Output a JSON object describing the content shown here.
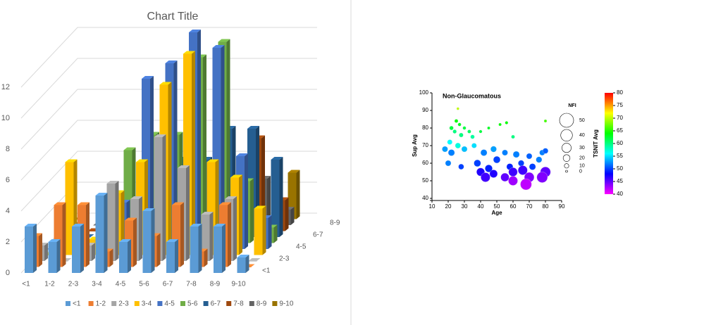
{
  "chart_data": [
    {
      "type": "bar3d",
      "title": "Chart Title",
      "categories": [
        "<1",
        "1-2",
        "2-3",
        "3-4",
        "4-5",
        "5-6",
        "6-7",
        "7-8",
        "8-9",
        "9-10"
      ],
      "series": [
        {
          "name": "<1",
          "color": "#5b9bd5",
          "values": [
            3,
            2,
            3,
            5,
            2,
            4,
            2,
            3,
            3,
            1
          ]
        },
        {
          "name": "1-2",
          "color": "#ed7d31",
          "values": [
            2,
            4,
            4,
            1,
            3,
            2,
            4,
            1,
            4,
            0
          ]
        },
        {
          "name": "2-3",
          "color": "#a5a5a5",
          "values": [
            1,
            0,
            1,
            5,
            4,
            8,
            6,
            3,
            4,
            0
          ]
        },
        {
          "name": "3-4",
          "color": "#ffc000",
          "values": [
            0,
            6,
            1,
            4,
            6,
            11,
            13,
            6,
            5,
            3
          ]
        },
        {
          "name": "4-5",
          "color": "#4472c4",
          "values": [
            0,
            0,
            0,
            3,
            11,
            12,
            14,
            13,
            6,
            2
          ]
        },
        {
          "name": "5-6",
          "color": "#70ad47",
          "values": [
            0,
            0,
            0,
            6,
            7,
            7,
            12,
            13,
            4,
            1
          ]
        },
        {
          "name": "6-7",
          "color": "#255e91",
          "values": [
            0,
            0,
            0,
            0,
            2,
            5,
            5,
            7,
            7,
            5
          ]
        },
        {
          "name": "7-8",
          "color": "#9e480e",
          "values": [
            0,
            0,
            0,
            1,
            1,
            1,
            2,
            3,
            6,
            2
          ]
        },
        {
          "name": "8-9",
          "color": "#636363",
          "values": [
            0,
            0,
            0,
            0,
            0,
            0,
            0,
            0,
            3,
            1
          ]
        },
        {
          "name": "9-10",
          "color": "#997300",
          "values": [
            0,
            0,
            0,
            0,
            0,
            0,
            0,
            0,
            0,
            3
          ]
        }
      ],
      "ylim": [
        0,
        14
      ],
      "yticks": [
        0,
        2,
        4,
        6,
        8,
        10,
        12
      ],
      "grid": true
    },
    {
      "type": "bubble",
      "title": "Non-Glaucomatous",
      "xlabel": "Age",
      "ylabel": "Sup Avg",
      "xlim": [
        10,
        90
      ],
      "xticks": [
        10,
        20,
        30,
        40,
        50,
        60,
        70,
        80,
        90
      ],
      "ylim": [
        40,
        100
      ],
      "yticks": [
        40,
        50,
        60,
        70,
        80,
        90,
        100
      ],
      "series": [
        {
          "x": [
            22,
            25,
            27,
            24,
            30,
            28,
            33,
            21,
            26,
            35,
            40,
            45,
            52,
            56,
            60,
            80,
            26,
            18,
            22,
            30,
            36,
            42,
            48,
            55,
            62,
            70,
            78,
            80,
            20,
            28,
            38,
            45,
            50,
            58,
            65,
            72,
            76,
            40,
            43,
            60,
            66,
            70,
            80,
            78,
            68,
            60,
            55,
            48
          ],
          "y": [
            80,
            84,
            82,
            78,
            80,
            76,
            78,
            72,
            70,
            75,
            78,
            80,
            82,
            83,
            75,
            84,
            91,
            68,
            66,
            68,
            70,
            66,
            68,
            66,
            65,
            64,
            66,
            67,
            60,
            58,
            60,
            57,
            62,
            58,
            60,
            58,
            62,
            55,
            52,
            55,
            56,
            52,
            55,
            52,
            48,
            50,
            52,
            54
          ],
          "sizes": [
            8,
            6,
            5,
            7,
            5,
            9,
            6,
            12,
            14,
            8,
            4,
            3,
            3,
            4,
            6,
            3,
            2,
            15,
            18,
            15,
            12,
            18,
            16,
            15,
            18,
            15,
            14,
            14,
            15,
            14,
            20,
            22,
            20,
            18,
            16,
            18,
            16,
            25,
            30,
            28,
            30,
            32,
            34,
            36,
            38,
            30,
            26,
            24
          ],
          "colors": [
            62,
            64,
            63,
            60,
            62,
            60,
            61,
            56,
            57,
            59,
            62,
            63,
            64,
            64,
            60,
            66,
            70,
            53,
            52,
            54,
            55,
            52,
            53,
            52,
            52,
            51,
            52,
            51,
            52,
            50,
            50,
            49,
            50,
            49,
            50,
            50,
            52,
            47,
            46,
            46,
            46,
            44,
            45,
            44,
            42,
            43,
            45,
            47
          ]
        }
      ],
      "size_label": "NFI",
      "size_legend": [
        50,
        40,
        30,
        20,
        10,
        0
      ],
      "color_label": "TSNIT Avg",
      "clim": [
        40,
        80
      ],
      "cticks": [
        40,
        45,
        50,
        55,
        60,
        65,
        70,
        75,
        80
      ]
    }
  ]
}
